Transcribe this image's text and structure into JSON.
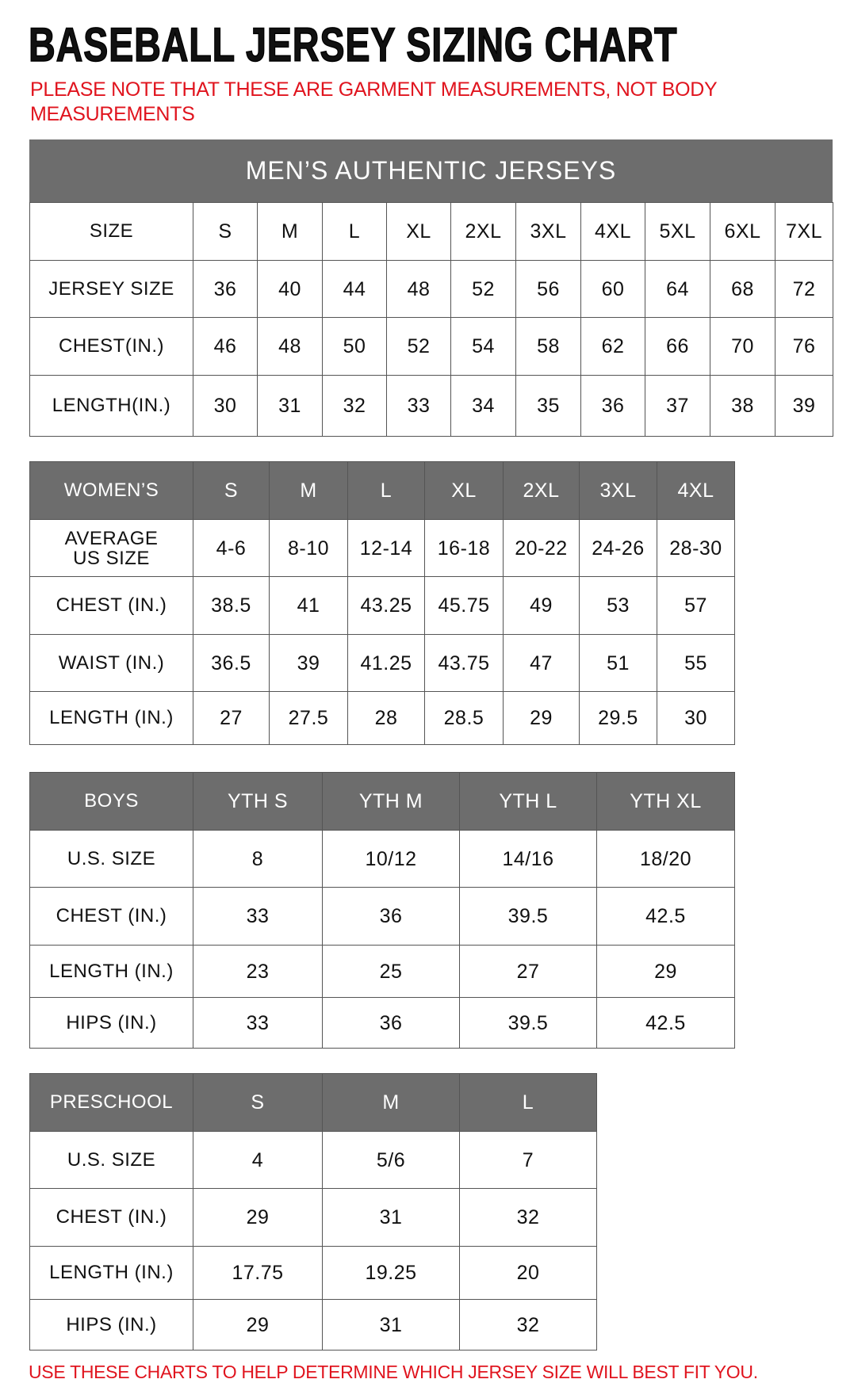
{
  "title": "BASEBALL JERSEY SIZING CHART",
  "note": "PLEASE NOTE THAT THESE ARE GARMENT MEASUREMENTS, NOT BODY MEASUREMENTS",
  "footer": "USE THESE CHARTS TO HELP DETERMINE WHICH JERSEY SIZE WILL BEST FIT YOU.",
  "colors": {
    "header_bg": "#6d6d6d",
    "accent_red": "#e0141e"
  },
  "mens": {
    "title": "MEN’S AUTHENTIC JERSEYS",
    "rows": [
      [
        "SIZE",
        "S",
        "M",
        "L",
        "XL",
        "2XL",
        "3XL",
        "4XL",
        "5XL",
        "6XL",
        "7XL"
      ],
      [
        "JERSEY SIZE",
        "36",
        "40",
        "44",
        "48",
        "52",
        "56",
        "60",
        "64",
        "68",
        "72"
      ],
      [
        "CHEST(IN.)",
        "46",
        "48",
        "50",
        "52",
        "54",
        "58",
        "62",
        "66",
        "70",
        "76"
      ],
      [
        "LENGTH(IN.)",
        "30",
        "31",
        "32",
        "33",
        "34",
        "35",
        "36",
        "37",
        "38",
        "39"
      ]
    ]
  },
  "womens": {
    "rows": [
      [
        "WOMEN’S",
        "S",
        "M",
        "L",
        "XL",
        "2XL",
        "3XL",
        "4XL"
      ],
      [
        "AVERAGE US SIZE",
        "4-6",
        "8-10",
        "12-14",
        "16-18",
        "20-22",
        "24-26",
        "28-30"
      ],
      [
        "CHEST (IN.)",
        "38.5",
        "41",
        "43.25",
        "45.75",
        "49",
        "53",
        "57"
      ],
      [
        "WAIST (IN.)",
        "36.5",
        "39",
        "41.25",
        "43.75",
        "47",
        "51",
        "55"
      ],
      [
        "LENGTH (IN.)",
        "27",
        "27.5",
        "28",
        "28.5",
        "29",
        "29.5",
        "30"
      ]
    ]
  },
  "boys": {
    "rows": [
      [
        "BOYS",
        "YTH S",
        "YTH M",
        "YTH L",
        "YTH XL"
      ],
      [
        "U.S. SIZE",
        "8",
        "10/12",
        "14/16",
        "18/20"
      ],
      [
        "CHEST (IN.)",
        "33",
        "36",
        "39.5",
        "42.5"
      ],
      [
        "LENGTH (IN.)",
        "23",
        "25",
        "27",
        "29"
      ],
      [
        "HIPS (IN.)",
        "33",
        "36",
        "39.5",
        "42.5"
      ]
    ]
  },
  "preschool": {
    "rows": [
      [
        "PRESCHOOL",
        "S",
        "M",
        "L"
      ],
      [
        "U.S. SIZE",
        "4",
        "5/6",
        "7"
      ],
      [
        "CHEST (IN.)",
        "29",
        "31",
        "32"
      ],
      [
        "LENGTH (IN.)",
        "17.75",
        "19.25",
        "20"
      ],
      [
        "HIPS (IN.)",
        "29",
        "31",
        "32"
      ]
    ]
  }
}
